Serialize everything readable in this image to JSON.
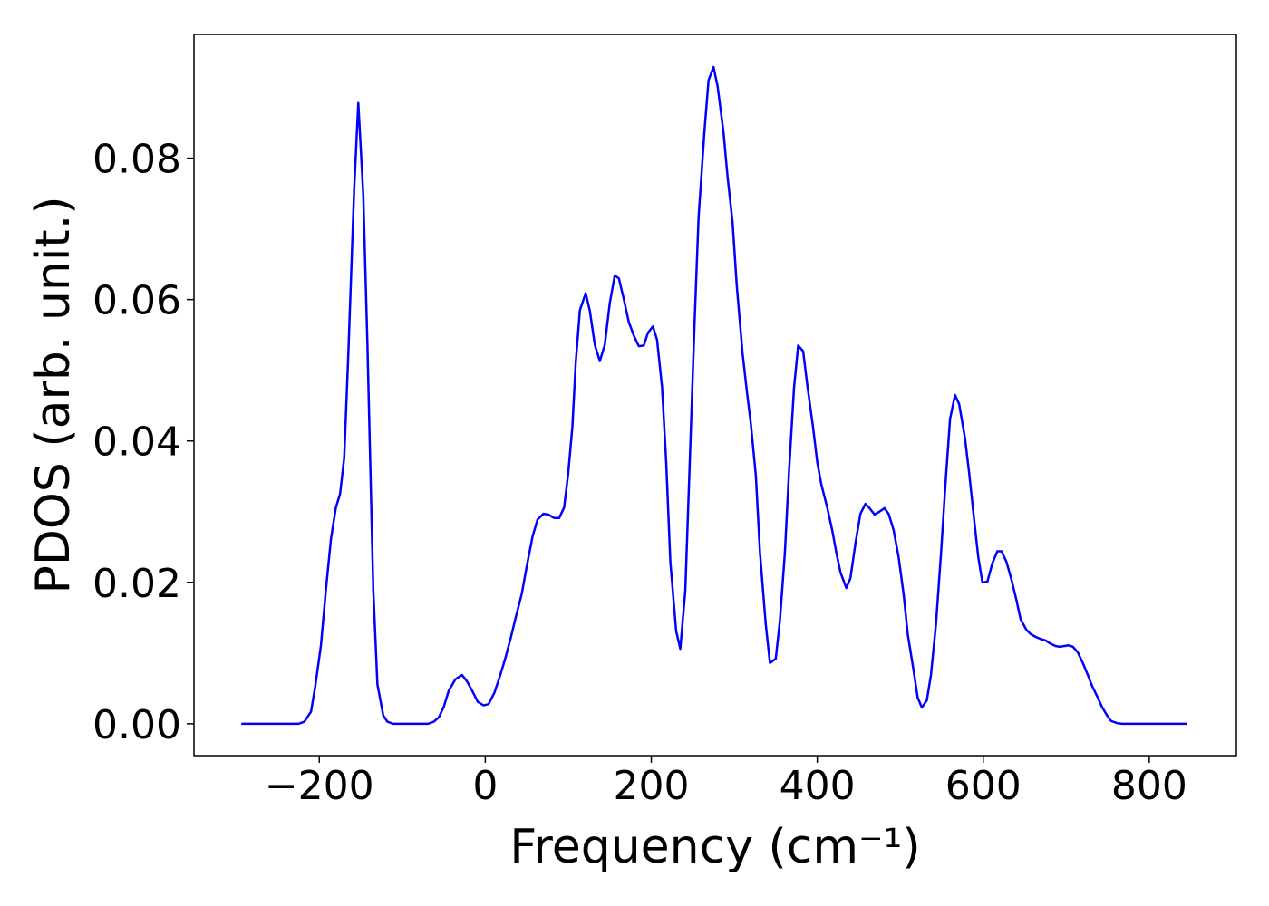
{
  "chart_data": {
    "type": "line",
    "xlabel": "Frequency (cm⁻¹)",
    "ylabel": "PDOS (arb. unit.)",
    "color": "#0000ff",
    "xlim": [
      -351,
      905
    ],
    "ylim": [
      -0.0045,
      0.0975
    ],
    "xticks": [
      {
        "value": -200,
        "label": "−200"
      },
      0,
      200,
      400,
      600,
      800
    ],
    "yticks": [
      {
        "value": 0,
        "label": "0.00"
      },
      0.02,
      0.04,
      0.06,
      0.08
    ],
    "x": [
      -294,
      -225,
      -218,
      -210,
      -205,
      -198,
      -192,
      -186,
      -180,
      -175,
      -170,
      -165,
      -158,
      -153,
      -147,
      -142,
      -135,
      -130,
      -123,
      -118,
      -111,
      -69,
      -62,
      -56,
      -50,
      -44,
      -36,
      -28,
      -22,
      -15,
      -9,
      -2,
      4,
      11,
      17,
      24,
      31,
      37,
      44,
      50,
      57,
      63,
      70,
      76,
      83,
      89,
      95,
      100,
      105,
      109,
      114,
      121,
      126,
      132,
      138,
      144,
      150,
      156,
      161,
      167,
      173,
      179,
      185,
      191,
      196,
      202,
      207,
      213,
      218,
      223,
      230,
      235,
      241,
      246,
      252,
      257,
      264,
      269,
      275,
      280,
      287,
      292,
      298,
      303,
      310,
      315,
      320,
      326,
      331,
      338,
      343,
      350,
      355,
      361,
      366,
      372,
      377,
      383,
      388,
      395,
      400,
      405,
      412,
      418,
      423,
      428,
      435,
      440,
      446,
      452,
      458,
      463,
      469,
      475,
      481,
      486,
      492,
      498,
      504,
      509,
      516,
      521,
      526,
      532,
      537,
      543,
      549,
      555,
      560,
      566,
      571,
      578,
      583,
      589,
      594,
      599,
      605,
      611,
      617,
      622,
      628,
      634,
      640,
      645,
      652,
      657,
      663,
      669,
      675,
      680,
      687,
      692,
      698,
      703,
      708,
      714,
      720,
      726,
      731,
      738,
      743,
      749,
      754,
      761,
      767,
      846
    ],
    "values": [
      0,
      0,
      0.0003,
      0.0017,
      0.0052,
      0.0111,
      0.019,
      0.0261,
      0.0306,
      0.0325,
      0.0376,
      0.0524,
      0.0756,
      0.0878,
      0.0748,
      0.0536,
      0.0191,
      0.0056,
      0.0012,
      0.0003,
      0,
      0,
      0.0003,
      0.0009,
      0.0024,
      0.0047,
      0.0063,
      0.0069,
      0.006,
      0.0045,
      0.0031,
      0.0026,
      0.0028,
      0.0044,
      0.0065,
      0.0092,
      0.0123,
      0.0152,
      0.0184,
      0.0223,
      0.0265,
      0.0289,
      0.0297,
      0.0296,
      0.0291,
      0.0291,
      0.0306,
      0.0355,
      0.0421,
      0.0511,
      0.0585,
      0.0609,
      0.0584,
      0.0536,
      0.0513,
      0.0536,
      0.0595,
      0.0634,
      0.063,
      0.06,
      0.0568,
      0.0549,
      0.0534,
      0.0535,
      0.0553,
      0.0562,
      0.0543,
      0.0476,
      0.037,
      0.0229,
      0.0131,
      0.0106,
      0.0188,
      0.0357,
      0.0562,
      0.0716,
      0.0837,
      0.091,
      0.0929,
      0.0901,
      0.0837,
      0.0773,
      0.0709,
      0.062,
      0.0524,
      0.0472,
      0.0424,
      0.0351,
      0.0242,
      0.014,
      0.0086,
      0.0092,
      0.0146,
      0.0242,
      0.0357,
      0.0475,
      0.0535,
      0.0527,
      0.0479,
      0.0419,
      0.037,
      0.0338,
      0.0306,
      0.0274,
      0.0242,
      0.0214,
      0.0192,
      0.0206,
      0.0255,
      0.0297,
      0.0311,
      0.0305,
      0.0296,
      0.03,
      0.0305,
      0.0297,
      0.0274,
      0.0236,
      0.0184,
      0.0127,
      0.0076,
      0.0037,
      0.0023,
      0.0033,
      0.0069,
      0.014,
      0.0239,
      0.0348,
      0.0431,
      0.0465,
      0.0452,
      0.0404,
      0.0355,
      0.0289,
      0.0236,
      0.02,
      0.0201,
      0.0227,
      0.0244,
      0.0244,
      0.0229,
      0.0204,
      0.0175,
      0.0148,
      0.0133,
      0.0127,
      0.0123,
      0.012,
      0.0118,
      0.0114,
      0.011,
      0.0109,
      0.011,
      0.0111,
      0.0109,
      0.0101,
      0.0086,
      0.0069,
      0.0054,
      0.0037,
      0.0024,
      0.0012,
      0.0004,
      0.0001,
      0,
      0
    ]
  }
}
